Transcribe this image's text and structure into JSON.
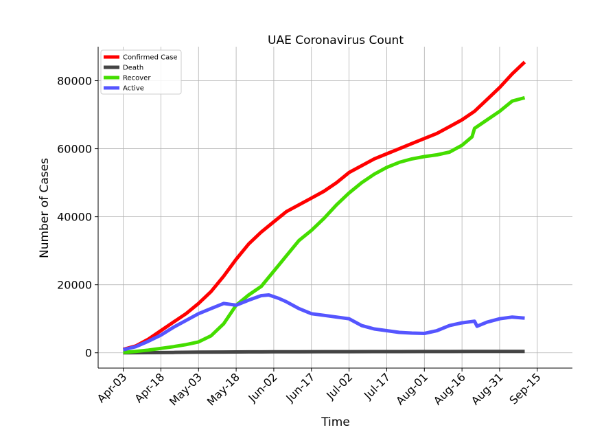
{
  "chart_data": {
    "type": "line",
    "title": "UAE Coronavirus Count",
    "xlabel": "Time",
    "ylabel": "Number of Cases",
    "x_ticks": [
      "Apr-03",
      "Apr-18",
      "May-03",
      "May-18",
      "Jun-02",
      "Jun-17",
      "Jul-02",
      "Jul-17",
      "Aug-01",
      "Aug-16",
      "Aug-31",
      "Sep-15"
    ],
    "y_ticks": [
      "0",
      "20000",
      "40000",
      "60000",
      "80000"
    ],
    "ylim": [
      -4500,
      90000
    ],
    "x_start": "2020-04-03",
    "x_end": "2020-09-21",
    "xlim": [
      "2020-03-24",
      "2020-09-29"
    ],
    "grid": true,
    "legend_position": "top-left",
    "series": [
      {
        "name": "Confirmed Case",
        "color": "#ff0000",
        "values": [
          [
            0,
            1000
          ],
          [
            5,
            2000
          ],
          [
            10,
            4000
          ],
          [
            15,
            6500
          ],
          [
            20,
            9000
          ],
          [
            25,
            11500
          ],
          [
            30,
            14500
          ],
          [
            35,
            18000
          ],
          [
            40,
            22500
          ],
          [
            45,
            27500
          ],
          [
            50,
            32000
          ],
          [
            55,
            35500
          ],
          [
            60,
            38500
          ],
          [
            65,
            41500
          ],
          [
            70,
            43500
          ],
          [
            75,
            45500
          ],
          [
            80,
            47500
          ],
          [
            85,
            50000
          ],
          [
            90,
            53000
          ],
          [
            95,
            55000
          ],
          [
            100,
            57000
          ],
          [
            105,
            58500
          ],
          [
            110,
            60000
          ],
          [
            115,
            61500
          ],
          [
            120,
            63000
          ],
          [
            125,
            64500
          ],
          [
            130,
            66500
          ],
          [
            135,
            68500
          ],
          [
            140,
            71000
          ],
          [
            145,
            74500
          ],
          [
            150,
            78000
          ],
          [
            155,
            82000
          ],
          [
            160,
            85500
          ]
        ]
      },
      {
        "name": "Death",
        "color": "#444444",
        "values": [
          [
            0,
            5
          ],
          [
            10,
            40
          ],
          [
            20,
            100
          ],
          [
            30,
            180
          ],
          [
            40,
            230
          ],
          [
            50,
            260
          ],
          [
            60,
            280
          ],
          [
            70,
            300
          ],
          [
            80,
            320
          ],
          [
            90,
            330
          ],
          [
            100,
            340
          ],
          [
            110,
            350
          ],
          [
            120,
            360
          ],
          [
            130,
            370
          ],
          [
            140,
            385
          ],
          [
            150,
            395
          ],
          [
            160,
            405
          ]
        ]
      },
      {
        "name": "Recover",
        "color": "#44dd00",
        "values": [
          [
            0,
            100
          ],
          [
            5,
            400
          ],
          [
            10,
            800
          ],
          [
            15,
            1300
          ],
          [
            20,
            1800
          ],
          [
            25,
            2400
          ],
          [
            30,
            3200
          ],
          [
            35,
            5000
          ],
          [
            40,
            8500
          ],
          [
            45,
            14000
          ],
          [
            50,
            17000
          ],
          [
            55,
            19500
          ],
          [
            60,
            24000
          ],
          [
            65,
            28500
          ],
          [
            70,
            33000
          ],
          [
            75,
            36000
          ],
          [
            80,
            39500
          ],
          [
            85,
            43500
          ],
          [
            90,
            47000
          ],
          [
            95,
            50000
          ],
          [
            100,
            52500
          ],
          [
            105,
            54500
          ],
          [
            110,
            56000
          ],
          [
            115,
            57000
          ],
          [
            120,
            57700
          ],
          [
            125,
            58200
          ],
          [
            130,
            59000
          ],
          [
            135,
            61000
          ],
          [
            139,
            63500
          ],
          [
            140,
            66000
          ],
          [
            145,
            68500
          ],
          [
            150,
            71000
          ],
          [
            155,
            74000
          ],
          [
            160,
            75000
          ]
        ]
      },
      {
        "name": "Active",
        "color": "#5555ff",
        "values": [
          [
            0,
            900
          ],
          [
            5,
            1800
          ],
          [
            10,
            3400
          ],
          [
            15,
            5200
          ],
          [
            20,
            7500
          ],
          [
            25,
            9500
          ],
          [
            30,
            11500
          ],
          [
            35,
            13000
          ],
          [
            40,
            14500
          ],
          [
            45,
            14000
          ],
          [
            50,
            15500
          ],
          [
            55,
            16800
          ],
          [
            58,
            17000
          ],
          [
            62,
            16000
          ],
          [
            65,
            15000
          ],
          [
            70,
            13000
          ],
          [
            75,
            11500
          ],
          [
            80,
            11000
          ],
          [
            85,
            10500
          ],
          [
            90,
            10000
          ],
          [
            95,
            8000
          ],
          [
            100,
            7000
          ],
          [
            105,
            6500
          ],
          [
            110,
            6000
          ],
          [
            115,
            5800
          ],
          [
            120,
            5700
          ],
          [
            125,
            6500
          ],
          [
            130,
            8000
          ],
          [
            135,
            8800
          ],
          [
            140,
            9300
          ],
          [
            141,
            7800
          ],
          [
            145,
            9000
          ],
          [
            150,
            10000
          ],
          [
            155,
            10500
          ],
          [
            160,
            10200
          ]
        ]
      }
    ]
  }
}
